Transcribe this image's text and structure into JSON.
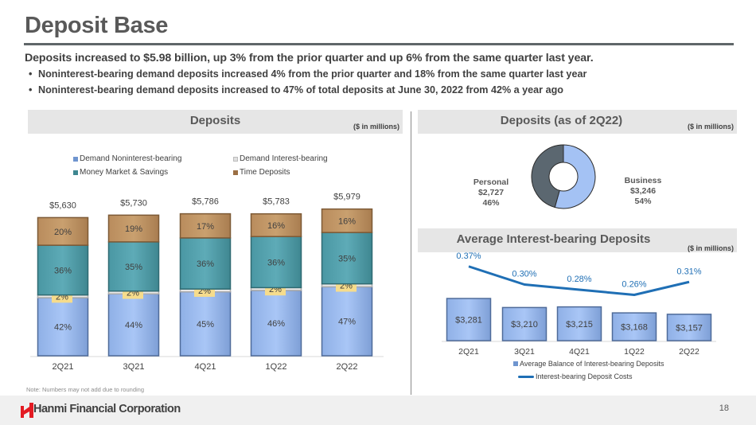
{
  "header": {
    "title": "Deposit Base",
    "summary": "Deposits increased to $5.98 billion, up 3%  from the prior quarter and up 6%  from the same quarter last year.",
    "bullets": [
      "Noninterest-bearing demand deposits increased 4% from the prior quarter and 18% from the same quarter last year",
      "Noninterest-bearing demand deposits increased to 47% of total deposits at June 30, 2022 from 42% a year ago"
    ],
    "bullet_glyph": "•"
  },
  "panels": {
    "deposits": {
      "title": "Deposits",
      "unit": "($ in millions)"
    },
    "deposits_mix": {
      "title": "Deposits (as of 2Q22)",
      "unit": "($ in millions)"
    },
    "avg_ib": {
      "title": "Average Interest-bearing Deposits",
      "unit": "($ in millions)"
    }
  },
  "note": "Note: Numbers may not add due to rounding",
  "footer": {
    "company": "Hanmi Financial Corporation",
    "page_number": "18",
    "brand_color": "#e31b23"
  },
  "colors": {
    "noninterest": "#a4c2f4",
    "interest": "#e8e8e8",
    "money_market": "#5ba8b4",
    "time": "#c49a6c",
    "label_box": "#f6dc8c",
    "personal": "#5b6770",
    "business": "#a4c2f4",
    "line": "#1f6fb5"
  },
  "chart_data": [
    {
      "type": "bar",
      "stacked": true,
      "title": "Deposits",
      "categories": [
        "2Q21",
        "3Q21",
        "4Q21",
        "1Q22",
        "2Q22"
      ],
      "totals": [
        5630,
        5730,
        5786,
        5783,
        5979
      ],
      "total_labels": [
        "$5,630",
        "$5,730",
        "$5,786",
        "$5,783",
        "$5,979"
      ],
      "series": [
        {
          "name": "Demand Noninterest-bearing",
          "values": [
            42,
            44,
            45,
            46,
            47
          ],
          "labels": [
            "42%",
            "44%",
            "45%",
            "46%",
            "47%"
          ]
        },
        {
          "name": "Demand Interest-bearing",
          "values": [
            2,
            2,
            2,
            2,
            2
          ],
          "labels": [
            "2%",
            "2%",
            "2%",
            "2%",
            "2%"
          ]
        },
        {
          "name": "Money Market & Savings",
          "values": [
            36,
            35,
            36,
            36,
            35
          ],
          "labels": [
            "36%",
            "35%",
            "36%",
            "36%",
            "35%"
          ]
        },
        {
          "name": "Time Deposits",
          "values": [
            20,
            19,
            17,
            16,
            16
          ],
          "labels": [
            "20%",
            "19%",
            "17%",
            "16%",
            "16%"
          ]
        }
      ],
      "legend": [
        "Demand Noninterest-bearing",
        "Demand Interest-bearing",
        "Money Market & Savings",
        "Time Deposits"
      ],
      "legend_position": "top",
      "ylim": [
        0,
        6000
      ],
      "grid": false
    },
    {
      "type": "pie",
      "donut": true,
      "title": "Deposits (as of 2Q22)",
      "slices": [
        {
          "name": "Business",
          "value": 3246,
          "value_label": "$3,246",
          "percent": 54,
          "percent_label": "54%"
        },
        {
          "name": "Personal",
          "value": 2727,
          "value_label": "$2,727",
          "percent": 46,
          "percent_label": "46%"
        }
      ]
    },
    {
      "type": "bar",
      "combo_line": true,
      "title": "Average Interest-bearing Deposits",
      "categories": [
        "2Q21",
        "3Q21",
        "4Q21",
        "1Q22",
        "2Q22"
      ],
      "series": [
        {
          "name": "Average Balance of Interest-bearing Deposits",
          "type": "bar",
          "values": [
            3281,
            3210,
            3215,
            3168,
            3157
          ],
          "labels": [
            "$3,281",
            "$3,210",
            "$3,215",
            "$3,168",
            "$3,157"
          ]
        },
        {
          "name": "Interest-bearing Deposit Costs",
          "type": "line",
          "values": [
            0.37,
            0.3,
            0.28,
            0.26,
            0.31
          ],
          "labels": [
            "0.37%",
            "0.30%",
            "0.28%",
            "0.26%",
            "0.31%"
          ]
        }
      ],
      "legend": [
        "Average Balance of Interest-bearing Deposits",
        "Interest-bearing Deposit Costs"
      ],
      "legend_position": "bottom",
      "grid": false
    }
  ]
}
